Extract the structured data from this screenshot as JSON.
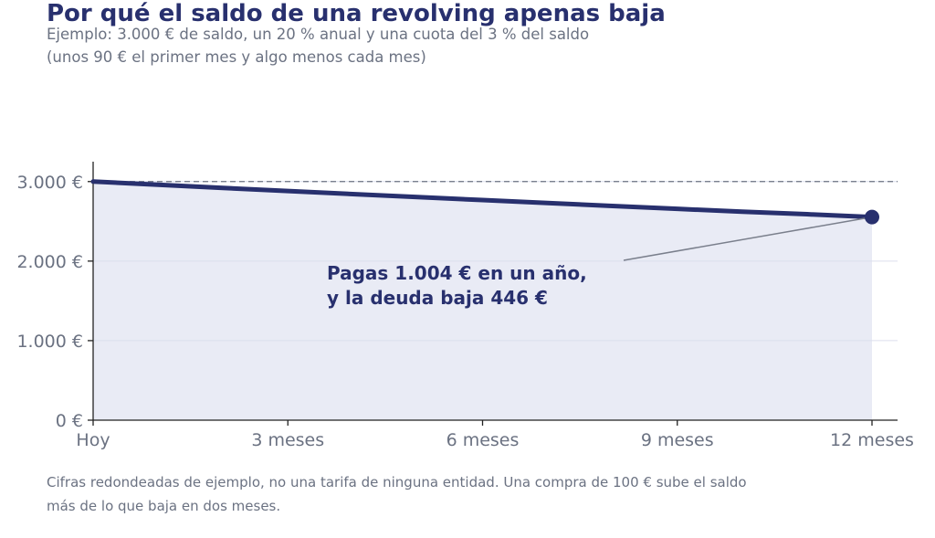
{
  "title": "Por qué el saldo de una revolving apenas baja",
  "subtitle": "Ejemplo: 3.000 € de saldo, un 20 % anual y una cuota del 3 % del saldo (unos 90 € el primer mes y algo menos cada mes)",
  "footnote": "Cifras redondeadas de ejemplo, no una tarifa de ninguna entidad. Una compra de 100 € sube el saldo más de lo que baja en dos meses.",
  "colors": {
    "series": "#28306e",
    "area": "#e9ebf5",
    "reference": "#6b7282",
    "text": "#6b7282"
  },
  "chart_data": {
    "type": "area",
    "x_ticks": [
      {
        "value": 0,
        "label": "Hoy"
      },
      {
        "value": 3,
        "label": "3 meses"
      },
      {
        "value": 6,
        "label": "6 meses"
      },
      {
        "value": 9,
        "label": "9 meses"
      },
      {
        "value": 12,
        "label": "12 meses"
      }
    ],
    "y_ticks": [
      {
        "value": 0,
        "label": "0 €"
      },
      {
        "value": 1000,
        "label": "1.000 €"
      },
      {
        "value": 2000,
        "label": "2.000 €"
      },
      {
        "value": 3000,
        "label": "3.000 €"
      }
    ],
    "xlim": [
      0,
      12
    ],
    "ylim": [
      0,
      3250
    ],
    "reference_line": 3000,
    "series": [
      {
        "x": [
          0,
          1,
          2,
          3,
          4,
          5,
          6,
          7,
          8,
          9,
          10,
          11,
          12
        ],
        "values": [
          3000,
          2960,
          2920,
          2881,
          2843,
          2805,
          2767,
          2730,
          2693,
          2657,
          2621,
          2589,
          2554
        ]
      }
    ],
    "annotation": {
      "lines": [
        "Pagas 1.004 € en un año,",
        "y la deuda baja 446 €"
      ],
      "point": {
        "x": 12,
        "y": 2554
      }
    },
    "grid": true
  }
}
